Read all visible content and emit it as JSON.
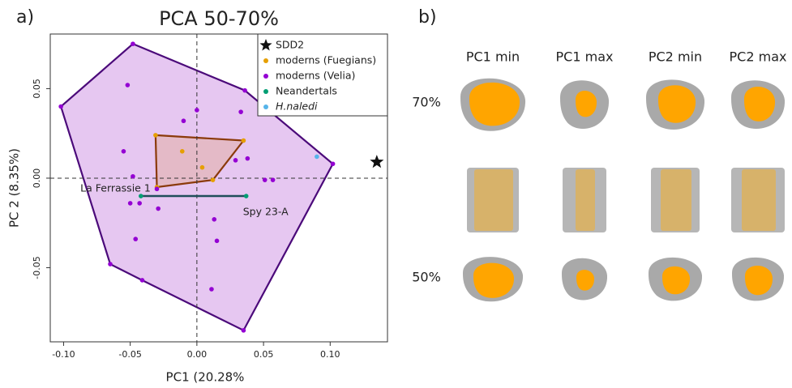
{
  "chart_data": {
    "type": "scatter",
    "title": "PCA 50-70%",
    "panel_label": "a)",
    "x_label": "PC1 (20.28%",
    "y_label": "PC 2 (8.35%)",
    "xlim": [
      -0.11,
      0.143
    ],
    "ylim": [
      -0.0914,
      0.0805
    ],
    "xticks": [
      {
        "value": -0.1,
        "label": "-0.10"
      },
      {
        "value": -0.05,
        "label": "-0.05"
      },
      {
        "value": 0,
        "label": "0.00"
      },
      {
        "value": 0.05,
        "label": "0.05"
      },
      {
        "value": 0.1,
        "label": "0.10"
      }
    ],
    "yticks": [
      {
        "value": -0.05,
        "label": "-0.05"
      },
      {
        "value": 0,
        "label": "0.00"
      },
      {
        "value": 0.05,
        "label": "0.05"
      }
    ],
    "zero_lines": true,
    "legend": "top-right",
    "series": [
      {
        "name": "SDD2",
        "color": "#111111",
        "marker": "star",
        "x": [
          0.135
        ],
        "y": [
          0.009
        ]
      },
      {
        "name": "moderns (Fuegians)",
        "color": "#e69f00",
        "marker": "circle",
        "hull": true,
        "hull_fill": "#e3b7c0",
        "hull_stroke": "#8b3a0a",
        "x": [
          -0.031,
          0.035,
          0.012,
          -0.03,
          -0.011,
          0.004
        ],
        "y": [
          0.024,
          0.021,
          -0.001,
          -0.005,
          0.015,
          0.006
        ]
      },
      {
        "name": "moderns (Velia)",
        "color": "#9400d3",
        "marker": "circle",
        "hull": true,
        "hull_fill": "#e6c7f1",
        "hull_stroke": "#4b0a7a",
        "x": [
          -0.048,
          0.036,
          0.102,
          0.035,
          -0.065,
          -0.102,
          -0.052,
          0.0,
          0.033,
          -0.01,
          -0.055,
          0.038,
          0.029,
          -0.048,
          0.051,
          0.057,
          -0.03,
          -0.05,
          -0.043,
          -0.029,
          0.013,
          -0.046,
          0.015,
          -0.041,
          0.011
        ],
        "y": [
          0.075,
          0.049,
          0.008,
          -0.085,
          -0.048,
          0.04,
          0.052,
          0.038,
          0.037,
          0.032,
          0.015,
          0.011,
          0.01,
          0.001,
          -0.001,
          -0.001,
          -0.006,
          -0.014,
          -0.014,
          -0.017,
          -0.023,
          -0.034,
          -0.035,
          -0.057,
          -0.062
        ]
      },
      {
        "name": "Neandertals",
        "color": "#009e73",
        "marker": "circle",
        "connect": true,
        "line_color": "#1f4e5a",
        "x": [
          -0.042,
          0.037
        ],
        "y": [
          -0.01,
          -0.01
        ],
        "point_labels": [
          "La Ferrassie 1",
          "Spy 23-A"
        ]
      },
      {
        "name": "H.naledi",
        "italic": true,
        "color": "#56b4e9",
        "marker": "circle",
        "x": [
          0.09
        ],
        "y": [
          0.012
        ]
      }
    ]
  },
  "panel_b": {
    "label": "b)",
    "columns": [
      "PC1 min",
      "PC1 max",
      "PC2 min",
      "PC2 max"
    ],
    "rows": [
      "70%",
      "50%"
    ]
  }
}
